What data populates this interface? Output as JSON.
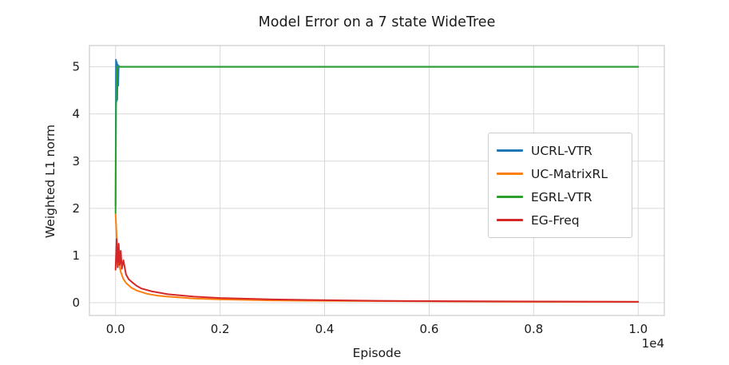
{
  "chart_data": {
    "type": "line",
    "title": "Model Error on a 7 state WideTree",
    "xlabel": "Episode",
    "ylabel": "Weighted L1 norm",
    "x_offset_text": "1e4",
    "xlim": [
      -500,
      10500
    ],
    "ylim": [
      -0.27,
      5.45
    ],
    "grid": true,
    "legend_position": "center right",
    "x_ticks": {
      "values": [
        0,
        2000,
        4000,
        6000,
        8000,
        10000
      ],
      "labels": [
        "0.0",
        "0.2",
        "0.4",
        "0.6",
        "0.8",
        "1.0"
      ]
    },
    "y_ticks": {
      "values": [
        0,
        1,
        2,
        3,
        4,
        5
      ],
      "labels": [
        "0",
        "1",
        "2",
        "3",
        "4",
        "5"
      ]
    },
    "series": [
      {
        "name": "UCRL-VTR",
        "color": "#1f77b4",
        "x": [
          0,
          8,
          16,
          24,
          32,
          40,
          50,
          60,
          80,
          120,
          200,
          1000,
          5000,
          10000
        ],
        "y": [
          2.05,
          5.15,
          4.25,
          5.1,
          4.3,
          5.05,
          4.6,
          5.02,
          5.0,
          5.0,
          5.0,
          5.0,
          5.0,
          5.0
        ]
      },
      {
        "name": "UC-MatrixRL",
        "color": "#ff7f0e",
        "x": [
          0,
          30,
          60,
          100,
          150,
          200,
          300,
          400,
          600,
          800,
          1000,
          1500,
          2000,
          3000,
          4000,
          6000,
          8000,
          10000
        ],
        "y": [
          1.88,
          1.2,
          0.85,
          0.65,
          0.5,
          0.42,
          0.32,
          0.26,
          0.19,
          0.15,
          0.13,
          0.09,
          0.07,
          0.05,
          0.04,
          0.03,
          0.02,
          0.02
        ]
      },
      {
        "name": "EGRL-VTR",
        "color": "#2ca02c",
        "x": [
          0,
          10,
          25,
          40,
          60,
          200,
          1000,
          5000,
          10000
        ],
        "y": [
          1.9,
          4.2,
          4.95,
          5.0,
          5.0,
          5.0,
          5.0,
          5.0,
          5.0
        ]
      },
      {
        "name": "EG-Freq",
        "color": "#d62728",
        "x": [
          0,
          20,
          40,
          60,
          80,
          100,
          120,
          150,
          200,
          250,
          300,
          400,
          500,
          700,
          1000,
          1500,
          2000,
          3000,
          5000,
          7000,
          10000
        ],
        "y": [
          0.7,
          1.35,
          0.75,
          1.25,
          0.8,
          1.1,
          0.72,
          0.9,
          0.6,
          0.5,
          0.45,
          0.36,
          0.3,
          0.24,
          0.18,
          0.13,
          0.1,
          0.07,
          0.04,
          0.03,
          0.02
        ]
      }
    ]
  },
  "legend": {
    "entries": [
      "UCRL-VTR",
      "UC-MatrixRL",
      "EGRL-VTR",
      "EG-Freq"
    ]
  }
}
